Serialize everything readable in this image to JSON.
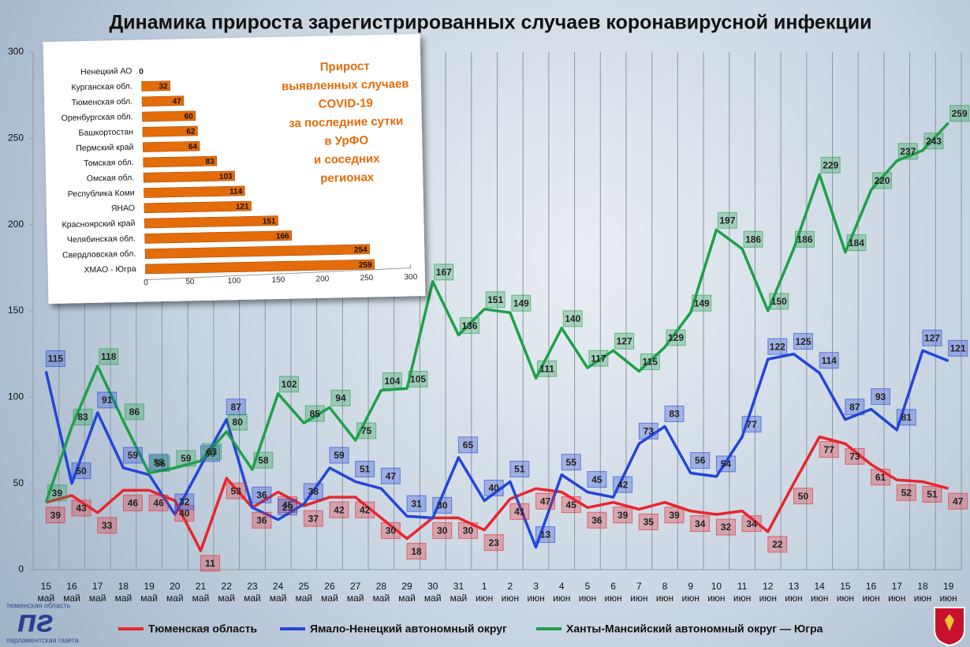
{
  "chart_data": [
    {
      "type": "line",
      "title": "Динамика прироста зарегистрированных случаев коронавирусной инфекции",
      "categories": [
        "15 май",
        "16 май",
        "17 май",
        "18 май",
        "19 май",
        "20 май",
        "21 май",
        "22 май",
        "23 май",
        "24 май",
        "25 май",
        "26 май",
        "27 май",
        "28 май",
        "29 май",
        "30 май",
        "31 май",
        "1 июн",
        "2 июн",
        "3 июн",
        "4 июн",
        "5 июн",
        "6 июн",
        "7 июн",
        "8 июн",
        "9 июн",
        "10 июн",
        "11 июн",
        "12 июн",
        "13 июн",
        "14 июн",
        "15 июн",
        "16 июн",
        "17 июн",
        "18 июн",
        "19 июн"
      ],
      "series": [
        {
          "name": "Тюменская область",
          "color": "#e8262c",
          "values": [
            39,
            43,
            33,
            46,
            46,
            40,
            11,
            53,
            36,
            45,
            37,
            42,
            42,
            30,
            18,
            30,
            30,
            23,
            41,
            47,
            45,
            36,
            39,
            35,
            39,
            34,
            32,
            34,
            22,
            50,
            77,
            73,
            61,
            52,
            51,
            47
          ]
        },
        {
          "name": "Ямало-Ненецкий автономный округ",
          "color": "#2446d8",
          "values": [
            115,
            50,
            91,
            59,
            55,
            32,
            60,
            87,
            36,
            29,
            38,
            59,
            51,
            47,
            31,
            30,
            65,
            40,
            51,
            13,
            55,
            45,
            42,
            73,
            83,
            56,
            54,
            77,
            122,
            125,
            114,
            87,
            93,
            81,
            127,
            121
          ]
        },
        {
          "name": "Ханты-Мансийский автономный округ — Югра",
          "color": "#1fa049",
          "values": [
            39,
            83,
            118,
            86,
            56,
            59,
            63,
            80,
            58,
            102,
            85,
            94,
            75,
            104,
            105,
            167,
            136,
            151,
            149,
            111,
            140,
            117,
            127,
            115,
            129,
            149,
            197,
            186,
            150,
            186,
            229,
            184,
            220,
            237,
            243,
            259
          ]
        }
      ],
      "ylim": [
        0,
        300
      ],
      "yticks": [
        0,
        50,
        100,
        150,
        200,
        250,
        300
      ],
      "grid": true,
      "legend": "bottom"
    },
    {
      "type": "bar",
      "orientation": "horizontal",
      "annotation": [
        "Прирост",
        "выявленных случаев",
        "COVID-19",
        "за последние сутки",
        "в УрФО",
        "и соседних",
        "регионах"
      ],
      "categories": [
        "Ненецкий АО",
        "Курганская обл.",
        "Тюменская обл.",
        "Оренбургская обл.",
        "Башкортостан",
        "Пермский край",
        "Томская обл.",
        "Омская обл.",
        "Республика Коми",
        "ЯНАО",
        "Красноярский край",
        "Челябинская обл.",
        "Свердловская обл.",
        "ХМАО - Югра"
      ],
      "values": [
        0,
        32,
        47,
        60,
        62,
        64,
        83,
        103,
        114,
        121,
        151,
        166,
        254,
        259
      ],
      "color": "#e46c0a",
      "xlim": [
        0,
        300
      ],
      "xticks": [
        0,
        50,
        100,
        150,
        200,
        250,
        300
      ]
    }
  ],
  "logo": {
    "region": "тюменская область",
    "mark": "пг",
    "name": "парламентская газета"
  }
}
